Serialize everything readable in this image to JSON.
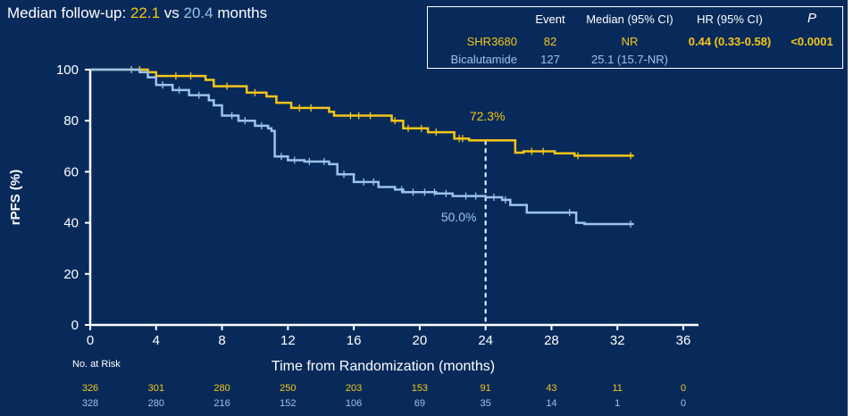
{
  "header": {
    "prefix": "Median follow-up: ",
    "value_a": "22.1",
    "mid": " vs ",
    "value_b": "20.4",
    "suffix": " months"
  },
  "legend_table": {
    "headers": [
      "Event",
      "Median (95% CI)",
      "HR (95% CI)",
      "P"
    ],
    "rows": [
      {
        "arm": "SHR3680",
        "event": "82",
        "median": "NR",
        "hr": "0.44 (0.33-0.58)",
        "p": "<0.0001"
      },
      {
        "arm": "Bicalutamide",
        "event": "127",
        "median": "25.1 (15.7-NR)",
        "hr": "",
        "p": ""
      }
    ]
  },
  "colors": {
    "background": "#082a5a",
    "shr3680": "#f5c518",
    "bicalutamide": "#9cc3ea",
    "axis": "#ffffff"
  },
  "chart_data": {
    "type": "line",
    "subtype": "kaplan-meier step",
    "title": "",
    "xlabel": "Time from Randomization (months)",
    "ylabel": "rPFS (%)",
    "xlim": [
      0,
      36
    ],
    "ylim": [
      0,
      100
    ],
    "xticks": [
      0,
      4,
      8,
      12,
      16,
      20,
      24,
      28,
      32,
      36
    ],
    "yticks": [
      0,
      20,
      40,
      60,
      80,
      100
    ],
    "series": [
      {
        "name": "SHR3680",
        "color": "#f5c518",
        "x": [
          0,
          3.5,
          4,
          7,
          7.5,
          9.5,
          10.7,
          11.3,
          12.2,
          14.5,
          14.8,
          18.3,
          19.0,
          20.5,
          22.1,
          23.0,
          25.8,
          26.3,
          28.2,
          29.4,
          33.0
        ],
        "y": [
          100,
          99,
          97.5,
          96,
          93.5,
          91,
          89.5,
          87,
          85,
          83.5,
          82,
          80,
          77,
          75.5,
          73,
          72.3,
          67.5,
          68,
          67.2,
          66.3,
          66.3
        ],
        "censor_x": [
          3.0,
          5.2,
          6.1,
          8.3,
          10.0,
          12.7,
          13.4,
          15.8,
          16.3,
          17.0,
          18.5,
          19.3,
          20.1,
          21.0,
          22.4,
          22.6,
          26.8,
          27.5,
          29.6,
          32.8
        ]
      },
      {
        "name": "Bicalutamide",
        "color": "#9cc3ea",
        "x": [
          0,
          3.0,
          3.5,
          4.0,
          5.0,
          6.0,
          7.2,
          7.5,
          8.0,
          9.0,
          10.0,
          10.8,
          11.0,
          11.2,
          12.0,
          13.0,
          14.5,
          15.0,
          16.0,
          17.5,
          18.5,
          19.0,
          21.0,
          22.0,
          24.0,
          25.0,
          25.5,
          26.5,
          29.5,
          30.0,
          33.0
        ],
        "y": [
          100,
          99,
          97,
          94,
          92,
          90,
          88,
          86,
          82,
          80,
          78,
          77,
          76,
          66,
          64.5,
          64,
          63,
          59,
          56,
          54,
          53,
          52,
          51.5,
          50.5,
          50.0,
          49,
          47,
          44,
          40,
          39.5,
          39.5
        ],
        "censor_x": [
          2.5,
          4.4,
          5.4,
          6.6,
          8.6,
          9.4,
          10.4,
          11.6,
          12.4,
          13.3,
          14.2,
          15.4,
          16.6,
          17.2,
          18.9,
          19.6,
          20.3,
          20.9,
          21.6,
          22.8,
          23.4,
          24.5,
          25.2,
          29.1,
          32.8
        ]
      }
    ],
    "annotations": [
      {
        "text": "72.3%",
        "series": "SHR3680",
        "x": 24,
        "y": 72.3
      },
      {
        "text": "50.0%",
        "series": "Bicalutamide",
        "x": 24,
        "y": 50.0
      }
    ],
    "reference_line": {
      "x": 24,
      "style": "dashed"
    },
    "risk_table": {
      "title": "No. at Risk",
      "times": [
        0,
        4,
        8,
        12,
        16,
        20,
        24,
        28,
        32,
        36
      ],
      "rows": [
        {
          "name": "SHR3680",
          "values": [
            "326",
            "301",
            "280",
            "250",
            "203",
            "153",
            "91",
            "43",
            "11",
            "0"
          ]
        },
        {
          "name": "Bicalutamide",
          "values": [
            "328",
            "280",
            "216",
            "152",
            "106",
            "69",
            "35",
            "14",
            "1",
            "0"
          ]
        }
      ]
    }
  }
}
